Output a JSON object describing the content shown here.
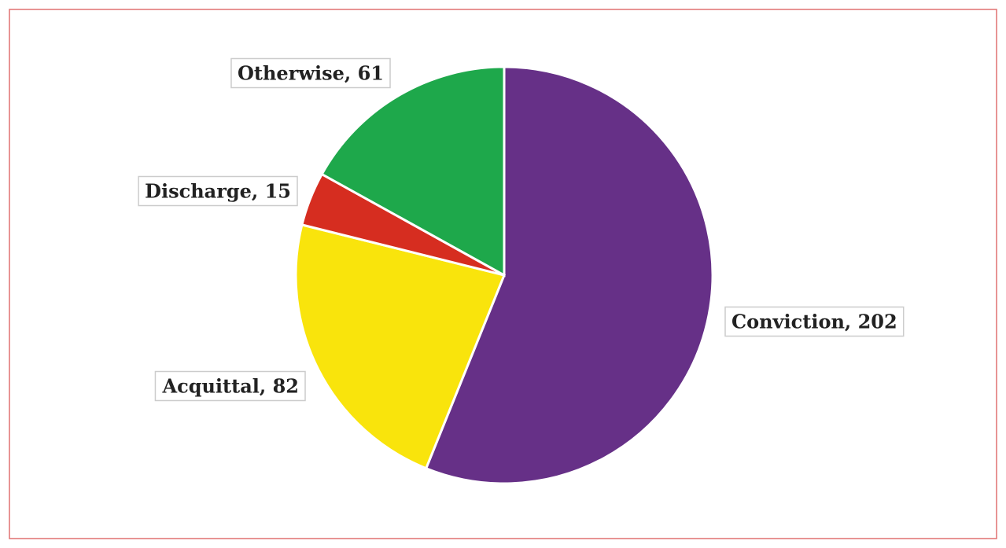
{
  "chart_data": {
    "type": "pie",
    "values": [
      202,
      82,
      15,
      61
    ],
    "value_labels": [
      "Conviction, 202",
      "Acquittal, 82",
      "Discharge, 15",
      "Otherwise, 61"
    ],
    "colors": [
      "#663087",
      "#f9e40c",
      "#d62d20",
      "#1ea84b"
    ]
  }
}
